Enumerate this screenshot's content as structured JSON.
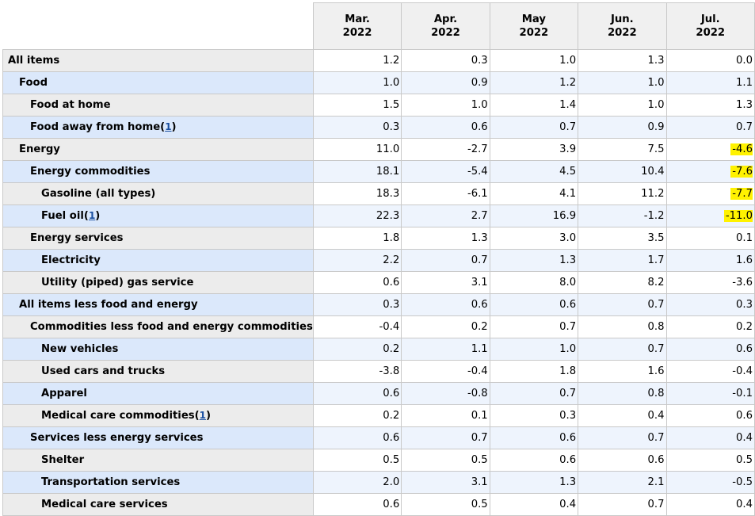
{
  "colors": {
    "highlight": "#fff200",
    "label_odd": "#ececec",
    "label_even": "#dbe8fb",
    "footnote_link": "#1a4fa0"
  },
  "columns": [
    {
      "month": "Mar.",
      "year": "2022"
    },
    {
      "month": "Apr.",
      "year": "2022"
    },
    {
      "month": "May",
      "year": "2022"
    },
    {
      "month": "Jun.",
      "year": "2022"
    },
    {
      "month": "Jul.",
      "year": "2022"
    }
  ],
  "rows": [
    {
      "label": "All items",
      "level": 0,
      "footnote": "",
      "values": [
        "1.2",
        "0.3",
        "1.0",
        "1.3",
        "0.0"
      ],
      "highlight": [
        false,
        false,
        false,
        false,
        false
      ]
    },
    {
      "label": "Food",
      "level": 1,
      "footnote": "",
      "values": [
        "1.0",
        "0.9",
        "1.2",
        "1.0",
        "1.1"
      ],
      "highlight": [
        false,
        false,
        false,
        false,
        false
      ]
    },
    {
      "label": "Food at home",
      "level": 2,
      "footnote": "",
      "values": [
        "1.5",
        "1.0",
        "1.4",
        "1.0",
        "1.3"
      ],
      "highlight": [
        false,
        false,
        false,
        false,
        false
      ]
    },
    {
      "label": "Food away from home",
      "level": 2,
      "footnote": "1",
      "values": [
        "0.3",
        "0.6",
        "0.7",
        "0.9",
        "0.7"
      ],
      "highlight": [
        false,
        false,
        false,
        false,
        false
      ]
    },
    {
      "label": "Energy",
      "level": 1,
      "footnote": "",
      "values": [
        "11.0",
        "-2.7",
        "3.9",
        "7.5",
        "-4.6"
      ],
      "highlight": [
        false,
        false,
        false,
        false,
        true
      ]
    },
    {
      "label": "Energy commodities",
      "level": 2,
      "footnote": "",
      "values": [
        "18.1",
        "-5.4",
        "4.5",
        "10.4",
        "-7.6"
      ],
      "highlight": [
        false,
        false,
        false,
        false,
        true
      ]
    },
    {
      "label": "Gasoline (all types)",
      "level": 3,
      "footnote": "",
      "values": [
        "18.3",
        "-6.1",
        "4.1",
        "11.2",
        "-7.7"
      ],
      "highlight": [
        false,
        false,
        false,
        false,
        true
      ]
    },
    {
      "label": "Fuel oil",
      "level": 3,
      "footnote": "1",
      "values": [
        "22.3",
        "2.7",
        "16.9",
        "-1.2",
        "-11.0"
      ],
      "highlight": [
        false,
        false,
        false,
        false,
        true
      ]
    },
    {
      "label": "Energy services",
      "level": 2,
      "footnote": "",
      "values": [
        "1.8",
        "1.3",
        "3.0",
        "3.5",
        "0.1"
      ],
      "highlight": [
        false,
        false,
        false,
        false,
        false
      ]
    },
    {
      "label": "Electricity",
      "level": 3,
      "footnote": "",
      "values": [
        "2.2",
        "0.7",
        "1.3",
        "1.7",
        "1.6"
      ],
      "highlight": [
        false,
        false,
        false,
        false,
        false
      ]
    },
    {
      "label": "Utility (piped) gas service",
      "level": 3,
      "footnote": "",
      "values": [
        "0.6",
        "3.1",
        "8.0",
        "8.2",
        "-3.6"
      ],
      "highlight": [
        false,
        false,
        false,
        false,
        false
      ]
    },
    {
      "label": "All items less food and energy",
      "level": 1,
      "footnote": "",
      "values": [
        "0.3",
        "0.6",
        "0.6",
        "0.7",
        "0.3"
      ],
      "highlight": [
        false,
        false,
        false,
        false,
        false
      ]
    },
    {
      "label": "Commodities less food and energy commodities",
      "level": 2,
      "footnote": "",
      "values": [
        "-0.4",
        "0.2",
        "0.7",
        "0.8",
        "0.2"
      ],
      "highlight": [
        false,
        false,
        false,
        false,
        false
      ]
    },
    {
      "label": "New vehicles",
      "level": 3,
      "footnote": "",
      "values": [
        "0.2",
        "1.1",
        "1.0",
        "0.7",
        "0.6"
      ],
      "highlight": [
        false,
        false,
        false,
        false,
        false
      ]
    },
    {
      "label": "Used cars and trucks",
      "level": 3,
      "footnote": "",
      "values": [
        "-3.8",
        "-0.4",
        "1.8",
        "1.6",
        "-0.4"
      ],
      "highlight": [
        false,
        false,
        false,
        false,
        false
      ]
    },
    {
      "label": "Apparel",
      "level": 3,
      "footnote": "",
      "values": [
        "0.6",
        "-0.8",
        "0.7",
        "0.8",
        "-0.1"
      ],
      "highlight": [
        false,
        false,
        false,
        false,
        false
      ]
    },
    {
      "label": "Medical care commodities",
      "level": 3,
      "footnote": "1",
      "values": [
        "0.2",
        "0.1",
        "0.3",
        "0.4",
        "0.6"
      ],
      "highlight": [
        false,
        false,
        false,
        false,
        false
      ]
    },
    {
      "label": "Services less energy services",
      "level": 2,
      "footnote": "",
      "values": [
        "0.6",
        "0.7",
        "0.6",
        "0.7",
        "0.4"
      ],
      "highlight": [
        false,
        false,
        false,
        false,
        false
      ]
    },
    {
      "label": "Shelter",
      "level": 3,
      "footnote": "",
      "values": [
        "0.5",
        "0.5",
        "0.6",
        "0.6",
        "0.5"
      ],
      "highlight": [
        false,
        false,
        false,
        false,
        false
      ]
    },
    {
      "label": "Transportation services",
      "level": 3,
      "footnote": "",
      "values": [
        "2.0",
        "3.1",
        "1.3",
        "2.1",
        "-0.5"
      ],
      "highlight": [
        false,
        false,
        false,
        false,
        false
      ]
    },
    {
      "label": "Medical care services",
      "level": 3,
      "footnote": "",
      "values": [
        "0.6",
        "0.5",
        "0.4",
        "0.7",
        "0.4"
      ],
      "highlight": [
        false,
        false,
        false,
        false,
        false
      ]
    }
  ]
}
